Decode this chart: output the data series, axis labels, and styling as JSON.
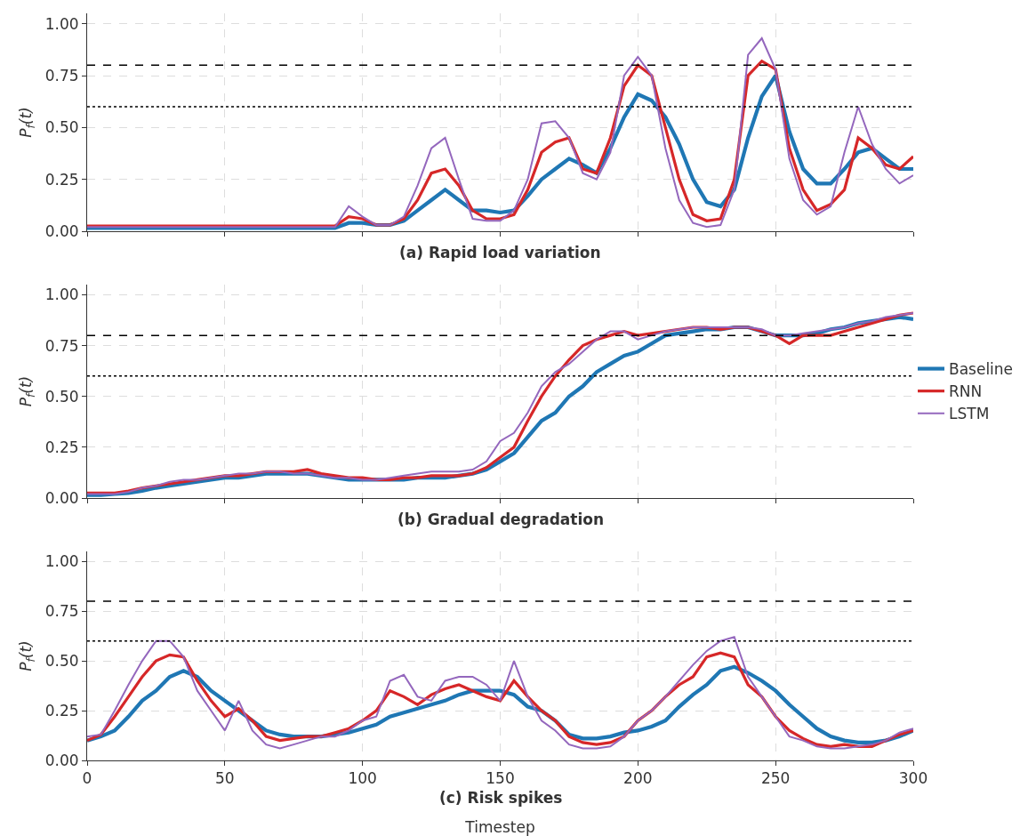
{
  "chart_data": [
    {
      "type": "line",
      "title": "(a) Rapid load variation",
      "ylabel": "P$_{f}$(t)",
      "tick_labels": "y",
      "grid": true,
      "legend": false,
      "line_style": "solid",
      "marker": "none",
      "xlim": [
        0,
        300
      ],
      "xticks": [
        0,
        50,
        100,
        150,
        200,
        250,
        300
      ],
      "ylim": [
        0,
        1.05
      ],
      "yticks": [
        {
          "value": 0,
          "label": "0.00"
        },
        {
          "value": 0.25,
          "label": "0.25"
        },
        {
          "value": 0.5,
          "label": "0.50"
        },
        {
          "value": 0.75,
          "label": "0.75"
        },
        {
          "value": 1,
          "label": "1.00"
        }
      ],
      "ref_lines": [
        {
          "axis": "y",
          "value": 0.8,
          "line_style": "dashed",
          "color": "#000000"
        },
        {
          "axis": "y",
          "value": 0.6,
          "line_style": "dotted",
          "color": "#000000"
        }
      ],
      "x": [
        0,
        5,
        10,
        15,
        20,
        25,
        30,
        35,
        40,
        45,
        50,
        55,
        60,
        65,
        70,
        75,
        80,
        85,
        90,
        95,
        100,
        105,
        110,
        115,
        120,
        125,
        130,
        135,
        140,
        145,
        150,
        155,
        160,
        165,
        170,
        175,
        180,
        185,
        190,
        195,
        200,
        205,
        210,
        215,
        220,
        225,
        230,
        235,
        240,
        245,
        250,
        255,
        260,
        265,
        270,
        275,
        280,
        285,
        290,
        295,
        300
      ],
      "series": [
        {
          "color": "#1f77b4",
          "values": [
            0.015,
            0.015,
            0.015,
            0.015,
            0.015,
            0.015,
            0.015,
            0.015,
            0.015,
            0.015,
            0.015,
            0.015,
            0.015,
            0.015,
            0.015,
            0.015,
            0.015,
            0.015,
            0.015,
            0.04,
            0.04,
            0.03,
            0.03,
            0.05,
            0.1,
            0.15,
            0.2,
            0.15,
            0.1,
            0.1,
            0.09,
            0.1,
            0.17,
            0.25,
            0.3,
            0.35,
            0.32,
            0.28,
            0.4,
            0.55,
            0.66,
            0.63,
            0.55,
            0.42,
            0.25,
            0.14,
            0.12,
            0.2,
            0.45,
            0.65,
            0.75,
            0.48,
            0.3,
            0.23,
            0.23,
            0.3,
            0.38,
            0.4,
            0.35,
            0.3,
            0.3
          ]
        },
        {
          "color": "#d62728",
          "values": [
            0.025,
            0.025,
            0.025,
            0.025,
            0.025,
            0.025,
            0.025,
            0.025,
            0.025,
            0.025,
            0.025,
            0.025,
            0.025,
            0.025,
            0.025,
            0.025,
            0.025,
            0.025,
            0.025,
            0.07,
            0.06,
            0.03,
            0.03,
            0.06,
            0.15,
            0.28,
            0.3,
            0.22,
            0.1,
            0.06,
            0.06,
            0.08,
            0.2,
            0.38,
            0.43,
            0.45,
            0.3,
            0.28,
            0.45,
            0.7,
            0.8,
            0.75,
            0.5,
            0.25,
            0.08,
            0.05,
            0.06,
            0.25,
            0.75,
            0.82,
            0.78,
            0.4,
            0.2,
            0.1,
            0.13,
            0.2,
            0.45,
            0.4,
            0.32,
            0.3,
            0.36
          ]
        },
        {
          "color": "#9467bd",
          "values": [
            0.02,
            0.02,
            0.02,
            0.02,
            0.02,
            0.02,
            0.02,
            0.02,
            0.02,
            0.02,
            0.02,
            0.02,
            0.02,
            0.02,
            0.02,
            0.02,
            0.02,
            0.02,
            0.02,
            0.12,
            0.07,
            0.03,
            0.03,
            0.07,
            0.22,
            0.4,
            0.45,
            0.25,
            0.06,
            0.05,
            0.05,
            0.1,
            0.25,
            0.52,
            0.53,
            0.45,
            0.28,
            0.25,
            0.38,
            0.75,
            0.84,
            0.75,
            0.4,
            0.15,
            0.04,
            0.02,
            0.03,
            0.2,
            0.85,
            0.93,
            0.78,
            0.35,
            0.15,
            0.08,
            0.12,
            0.38,
            0.6,
            0.42,
            0.3,
            0.23,
            0.27
          ]
        }
      ]
    },
    {
      "type": "line",
      "title": "(b) Gradual degradation",
      "ylabel": "P$_{f}$(t)",
      "tick_labels": "y",
      "grid": true,
      "legend": "right",
      "line_style": "solid",
      "marker": "none",
      "xlim": [
        0,
        300
      ],
      "xticks": [
        0,
        50,
        100,
        150,
        200,
        250,
        300
      ],
      "ylim": [
        0,
        1.05
      ],
      "yticks": [
        {
          "value": 0,
          "label": "0.00"
        },
        {
          "value": 0.25,
          "label": "0.25"
        },
        {
          "value": 0.5,
          "label": "0.50"
        },
        {
          "value": 0.75,
          "label": "0.75"
        },
        {
          "value": 1,
          "label": "1.00"
        }
      ],
      "ref_lines": [
        {
          "axis": "y",
          "value": 0.8,
          "line_style": "dashed",
          "color": "#000000"
        },
        {
          "axis": "y",
          "value": 0.6,
          "line_style": "dotted",
          "color": "#000000"
        }
      ],
      "x": [
        0,
        5,
        10,
        15,
        20,
        25,
        30,
        35,
        40,
        45,
        50,
        55,
        60,
        65,
        70,
        75,
        80,
        85,
        90,
        95,
        100,
        105,
        110,
        115,
        120,
        125,
        130,
        135,
        140,
        145,
        150,
        155,
        160,
        165,
        170,
        175,
        180,
        185,
        190,
        195,
        200,
        205,
        210,
        215,
        220,
        225,
        230,
        235,
        240,
        245,
        250,
        255,
        260,
        265,
        270,
        275,
        280,
        285,
        290,
        295,
        300
      ],
      "series": [
        {
          "name": "Baseline",
          "color": "#1f77b4",
          "values": [
            0.015,
            0.015,
            0.02,
            0.025,
            0.035,
            0.05,
            0.06,
            0.07,
            0.08,
            0.09,
            0.1,
            0.1,
            0.11,
            0.12,
            0.12,
            0.12,
            0.12,
            0.11,
            0.1,
            0.09,
            0.09,
            0.09,
            0.09,
            0.09,
            0.1,
            0.1,
            0.1,
            0.11,
            0.12,
            0.14,
            0.18,
            0.22,
            0.3,
            0.38,
            0.42,
            0.5,
            0.55,
            0.62,
            0.66,
            0.7,
            0.72,
            0.76,
            0.8,
            0.81,
            0.82,
            0.83,
            0.83,
            0.84,
            0.84,
            0.82,
            0.8,
            0.8,
            0.8,
            0.81,
            0.83,
            0.84,
            0.86,
            0.87,
            0.88,
            0.89,
            0.88
          ]
        },
        {
          "name": "RNN",
          "color": "#d62728",
          "values": [
            0.025,
            0.025,
            0.025,
            0.035,
            0.05,
            0.06,
            0.07,
            0.08,
            0.09,
            0.1,
            0.11,
            0.11,
            0.12,
            0.13,
            0.13,
            0.13,
            0.14,
            0.12,
            0.11,
            0.1,
            0.1,
            0.09,
            0.09,
            0.1,
            0.1,
            0.11,
            0.11,
            0.11,
            0.12,
            0.15,
            0.2,
            0.25,
            0.38,
            0.5,
            0.6,
            0.68,
            0.75,
            0.78,
            0.8,
            0.82,
            0.8,
            0.81,
            0.82,
            0.83,
            0.84,
            0.84,
            0.83,
            0.84,
            0.84,
            0.82,
            0.8,
            0.76,
            0.8,
            0.8,
            0.8,
            0.82,
            0.84,
            0.86,
            0.88,
            0.9,
            0.91
          ]
        },
        {
          "name": "LSTM",
          "color": "#9467bd",
          "values": [
            0.02,
            0.02,
            0.02,
            0.03,
            0.05,
            0.06,
            0.08,
            0.09,
            0.09,
            0.1,
            0.11,
            0.12,
            0.12,
            0.13,
            0.13,
            0.12,
            0.12,
            0.11,
            0.1,
            0.1,
            0.09,
            0.09,
            0.1,
            0.11,
            0.12,
            0.13,
            0.13,
            0.13,
            0.14,
            0.18,
            0.28,
            0.32,
            0.42,
            0.55,
            0.62,
            0.66,
            0.72,
            0.78,
            0.82,
            0.82,
            0.78,
            0.8,
            0.82,
            0.83,
            0.84,
            0.84,
            0.84,
            0.84,
            0.84,
            0.83,
            0.8,
            0.8,
            0.81,
            0.82,
            0.83,
            0.84,
            0.86,
            0.87,
            0.89,
            0.9,
            0.91
          ]
        }
      ]
    },
    {
      "type": "line",
      "title": "(c) Risk spikes",
      "xlabel": "Timestep",
      "ylabel": "P$_{f}$(t)",
      "grid": true,
      "legend": false,
      "line_style": "solid",
      "marker": "none",
      "xlim": [
        0,
        300
      ],
      "xticks": [
        0,
        50,
        100,
        150,
        200,
        250,
        300
      ],
      "ylim": [
        0,
        1.05
      ],
      "yticks": [
        {
          "value": 0,
          "label": "0.00"
        },
        {
          "value": 0.25,
          "label": "0.25"
        },
        {
          "value": 0.5,
          "label": "0.50"
        },
        {
          "value": 0.75,
          "label": "0.75"
        },
        {
          "value": 1,
          "label": "1.00"
        }
      ],
      "ref_lines": [
        {
          "axis": "y",
          "value": 0.8,
          "line_style": "dashed",
          "color": "#000000"
        },
        {
          "axis": "y",
          "value": 0.6,
          "line_style": "dotted",
          "color": "#000000"
        }
      ],
      "x": [
        0,
        5,
        10,
        15,
        20,
        25,
        30,
        35,
        40,
        45,
        50,
        55,
        60,
        65,
        70,
        75,
        80,
        85,
        90,
        95,
        100,
        105,
        110,
        115,
        120,
        125,
        130,
        135,
        140,
        145,
        150,
        155,
        160,
        165,
        170,
        175,
        180,
        185,
        190,
        195,
        200,
        205,
        210,
        215,
        220,
        225,
        230,
        235,
        240,
        245,
        250,
        255,
        260,
        265,
        270,
        275,
        280,
        285,
        290,
        295,
        300
      ],
      "series": [
        {
          "color": "#1f77b4",
          "values": [
            0.1,
            0.12,
            0.15,
            0.22,
            0.3,
            0.35,
            0.42,
            0.45,
            0.42,
            0.35,
            0.3,
            0.25,
            0.2,
            0.15,
            0.13,
            0.12,
            0.12,
            0.12,
            0.13,
            0.14,
            0.16,
            0.18,
            0.22,
            0.24,
            0.26,
            0.28,
            0.3,
            0.33,
            0.35,
            0.35,
            0.35,
            0.33,
            0.27,
            0.25,
            0.2,
            0.13,
            0.11,
            0.11,
            0.12,
            0.14,
            0.15,
            0.17,
            0.2,
            0.27,
            0.33,
            0.38,
            0.45,
            0.47,
            0.44,
            0.4,
            0.35,
            0.28,
            0.22,
            0.16,
            0.12,
            0.1,
            0.09,
            0.09,
            0.1,
            0.12,
            0.15
          ]
        },
        {
          "color": "#d62728",
          "values": [
            0.1,
            0.13,
            0.22,
            0.32,
            0.42,
            0.5,
            0.53,
            0.52,
            0.4,
            0.3,
            0.22,
            0.26,
            0.2,
            0.12,
            0.1,
            0.11,
            0.12,
            0.12,
            0.14,
            0.16,
            0.2,
            0.25,
            0.35,
            0.32,
            0.28,
            0.33,
            0.36,
            0.38,
            0.35,
            0.32,
            0.3,
            0.4,
            0.32,
            0.25,
            0.2,
            0.12,
            0.09,
            0.08,
            0.09,
            0.12,
            0.2,
            0.25,
            0.32,
            0.38,
            0.42,
            0.52,
            0.54,
            0.52,
            0.38,
            0.32,
            0.22,
            0.15,
            0.11,
            0.08,
            0.07,
            0.08,
            0.07,
            0.07,
            0.1,
            0.13,
            0.15
          ]
        },
        {
          "color": "#9467bd",
          "values": [
            0.12,
            0.13,
            0.25,
            0.38,
            0.5,
            0.6,
            0.6,
            0.52,
            0.35,
            0.25,
            0.15,
            0.3,
            0.15,
            0.08,
            0.06,
            0.08,
            0.1,
            0.12,
            0.12,
            0.15,
            0.2,
            0.22,
            0.4,
            0.43,
            0.32,
            0.3,
            0.4,
            0.42,
            0.42,
            0.38,
            0.3,
            0.5,
            0.32,
            0.2,
            0.15,
            0.08,
            0.06,
            0.06,
            0.07,
            0.12,
            0.2,
            0.25,
            0.32,
            0.4,
            0.48,
            0.55,
            0.6,
            0.62,
            0.42,
            0.32,
            0.22,
            0.12,
            0.1,
            0.07,
            0.06,
            0.06,
            0.07,
            0.08,
            0.1,
            0.14,
            0.16
          ]
        }
      ]
    }
  ]
}
